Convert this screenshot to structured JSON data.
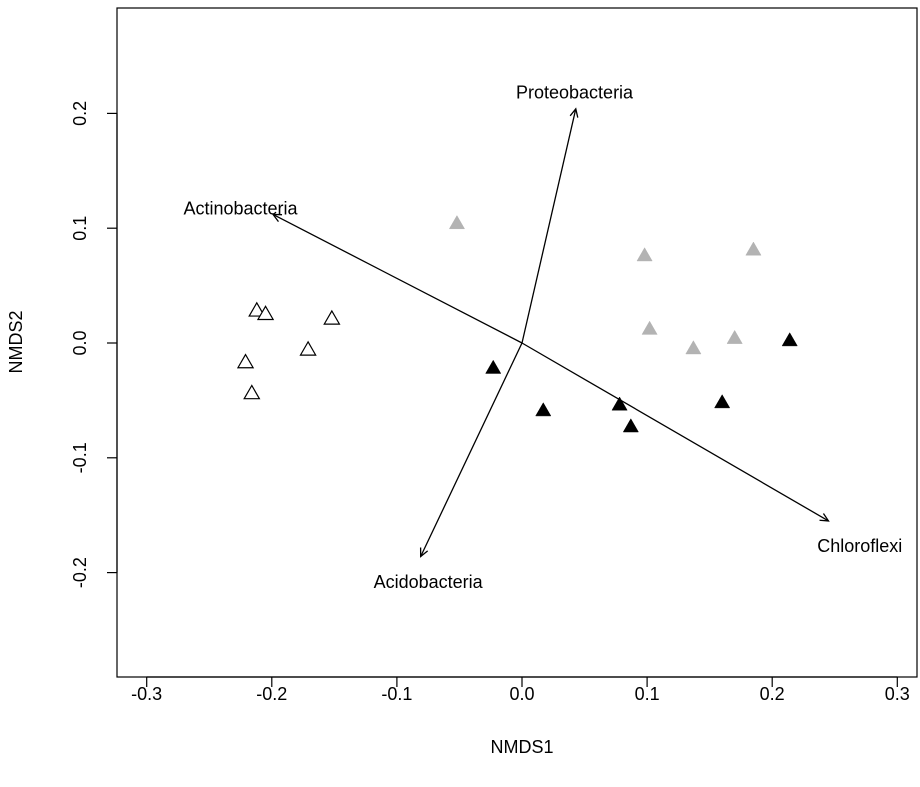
{
  "chart_data": {
    "type": "scatter",
    "title": "",
    "xlabel": "NMDS1",
    "ylabel": "NMDS2",
    "xlim": [
      -0.32,
      0.32
    ],
    "ylim": [
      -0.29,
      0.29
    ],
    "xticks": [
      -0.3,
      -0.2,
      -0.1,
      0.0,
      0.1,
      0.2,
      0.3
    ],
    "xtick_labels": [
      "-0.3",
      "-0.2",
      "-0.1",
      "0.0",
      "0.1",
      "0.2",
      "0.3"
    ],
    "yticks": [
      -0.2,
      -0.1,
      0.0,
      0.1,
      0.2
    ],
    "ytick_labels": [
      "-0.2",
      "-0.1",
      "0.0",
      "0.1",
      "0.2"
    ],
    "grid": false,
    "colors": {
      "open": "#000000",
      "gray": "#b3b3b3",
      "black": "#000000"
    },
    "series": [
      {
        "marker": "open-triangle",
        "color": "#000000",
        "points": [
          [
            -0.212,
            0.028
          ],
          [
            -0.205,
            0.025
          ],
          [
            -0.152,
            0.021
          ],
          [
            -0.171,
            -0.006
          ],
          [
            -0.221,
            -0.017
          ],
          [
            -0.216,
            -0.044
          ]
        ]
      },
      {
        "marker": "filled-triangle",
        "color": "#b3b3b3",
        "points": [
          [
            -0.052,
            0.104
          ],
          [
            0.098,
            0.076
          ],
          [
            0.185,
            0.081
          ],
          [
            0.102,
            0.012
          ],
          [
            0.137,
            -0.005
          ],
          [
            0.17,
            0.004
          ]
        ]
      },
      {
        "marker": "filled-triangle",
        "color": "#000000",
        "points": [
          [
            -0.023,
            -0.022
          ],
          [
            0.017,
            -0.059
          ],
          [
            0.078,
            -0.054
          ],
          [
            0.087,
            -0.073
          ],
          [
            0.16,
            -0.052
          ],
          [
            0.214,
            0.002
          ]
        ]
      }
    ],
    "vectors": [
      {
        "label": "Proteobacteria",
        "x": 0.043,
        "y": 0.204,
        "label_x": 0.042,
        "label_y": 0.218
      },
      {
        "label": "Actinobacteria",
        "x": -0.199,
        "y": 0.112,
        "label_x": -0.225,
        "label_y": 0.117
      },
      {
        "label": "Chloroflexi",
        "x": 0.245,
        "y": -0.155,
        "label_x": 0.27,
        "label_y": -0.177
      },
      {
        "label": "Acidobacteria",
        "x": -0.081,
        "y": -0.186,
        "label_x": -0.075,
        "label_y": -0.208
      }
    ]
  }
}
